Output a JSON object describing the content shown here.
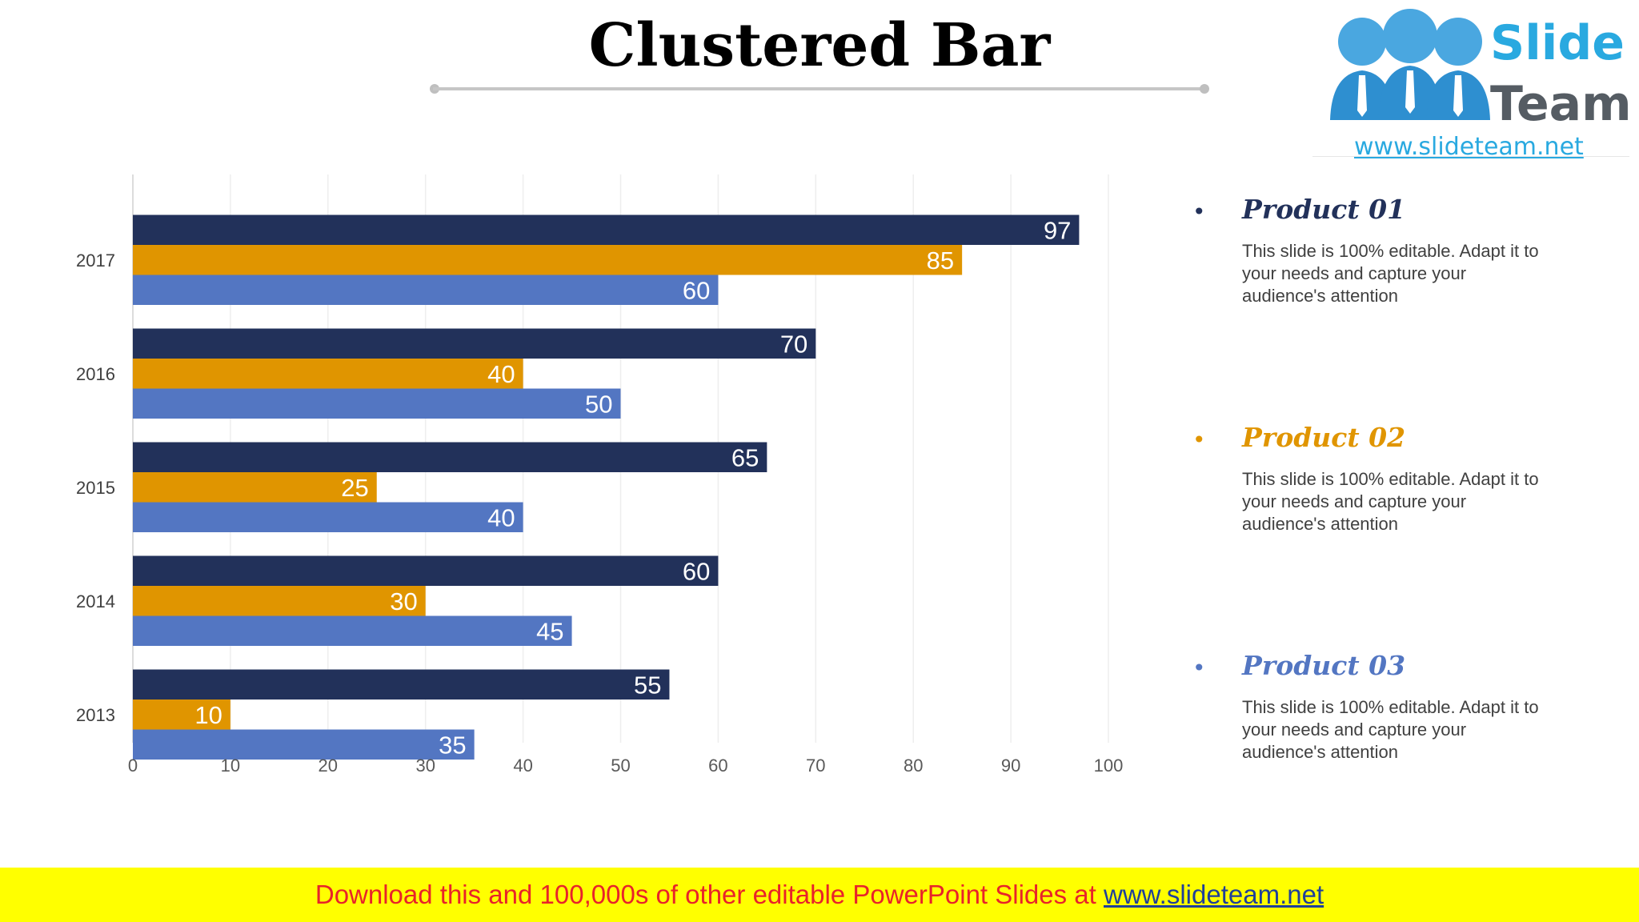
{
  "slide": {
    "title": "Clustered Bar"
  },
  "logo": {
    "word1": "Slide",
    "word2": "Team",
    "url": "www.slideteam.net"
  },
  "chart_data": {
    "type": "bar",
    "orientation": "horizontal",
    "categories": [
      "2013",
      "2014",
      "2015",
      "2016",
      "2017"
    ],
    "series": [
      {
        "name": "Product 01",
        "color": "#22315a",
        "values": [
          55,
          60,
          65,
          70,
          97
        ]
      },
      {
        "name": "Product 02",
        "color": "#e09500",
        "values": [
          10,
          30,
          25,
          40,
          85
        ]
      },
      {
        "name": "Product 03",
        "color": "#5376c2",
        "values": [
          35,
          45,
          40,
          50,
          60
        ]
      }
    ],
    "x_ticks": [
      "0",
      "10",
      "20",
      "30",
      "40",
      "50",
      "60",
      "70",
      "80",
      "90",
      "100"
    ],
    "xlim": [
      0,
      100
    ],
    "grid": true,
    "data_labels": true,
    "legend_position": "right"
  },
  "legend": [
    {
      "name": "Product 01",
      "color": "#22315a",
      "bullet": "•",
      "description": "This slide is 100% editable. Adapt it to your needs and capture your audience's attention"
    },
    {
      "name": "Product 02",
      "color": "#e09500",
      "bullet": "•",
      "description": "This slide is 100% editable. Adapt it to your needs and capture your audience's attention"
    },
    {
      "name": "Product 03",
      "color": "#5376c2",
      "bullet": "•",
      "description": "This slide is 100% editable. Adapt it to your needs and capture your audience's attention"
    }
  ],
  "footer": {
    "text": "Download this and 100,000s of other editable PowerPoint Slides at ",
    "link": "www.slideteam.net"
  }
}
